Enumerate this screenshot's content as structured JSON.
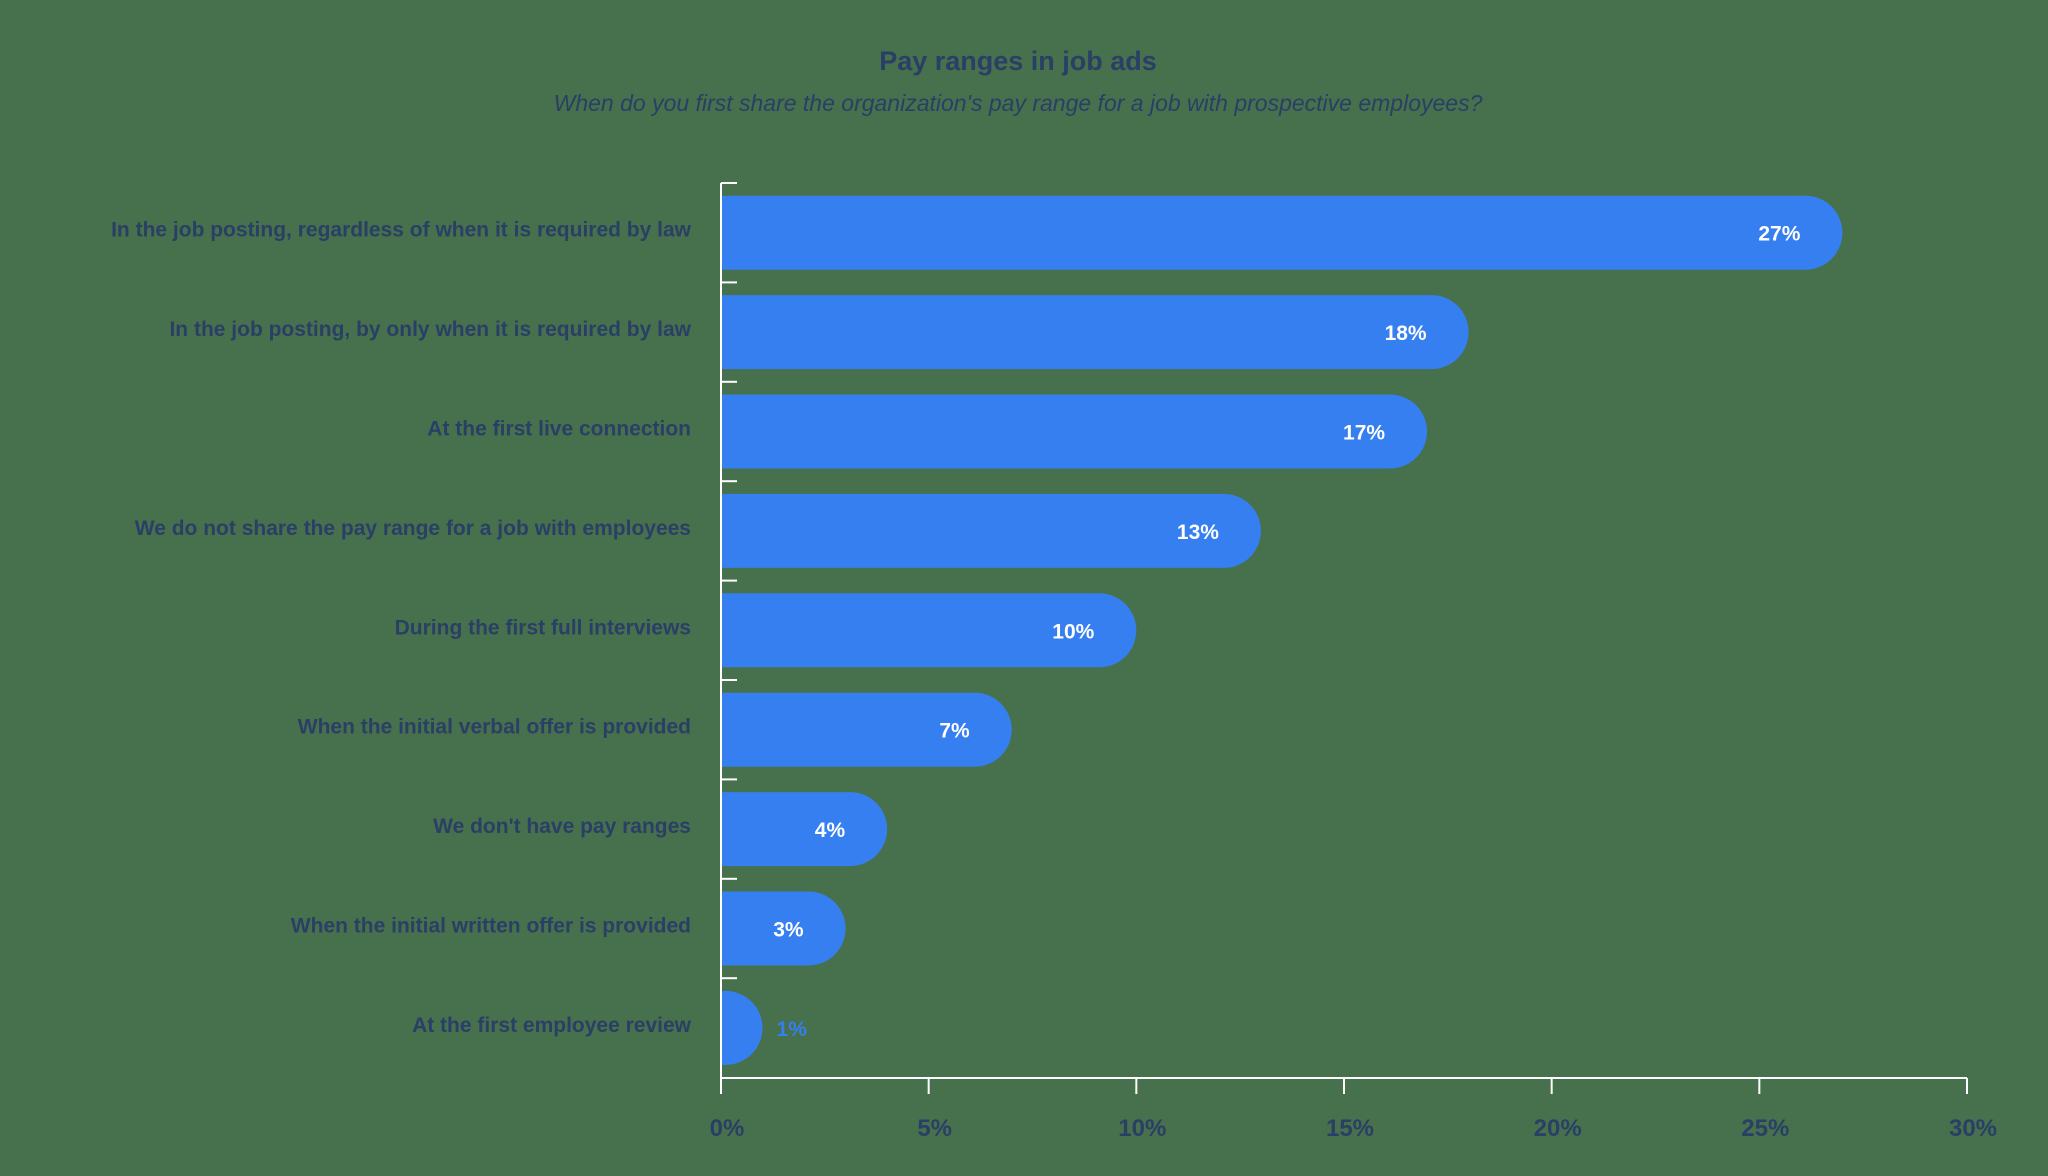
{
  "colors": {
    "background": "#47704d",
    "bar": "#367ff0",
    "text": "#2a3f66",
    "axis": "#ffffff"
  },
  "chart_data": {
    "type": "bar",
    "orientation": "horizontal",
    "title": "Pay ranges in job ads",
    "subtitle": "When do you first share the organization's pay range for a job with prospective employees?",
    "categories": [
      "In the job posting, regardless of when it is required by law",
      "In the job posting, by only when it is required by law",
      "At the first live connection",
      "We do not share the pay range for a job with employees",
      "During the first full interviews",
      "When the initial verbal offer is provided",
      "We don't have pay ranges",
      "When the initial written offer is provided",
      "At the first employee review"
    ],
    "values": [
      27,
      18,
      17,
      13,
      10,
      7,
      4,
      3,
      1
    ],
    "value_labels": [
      "27%",
      "18%",
      "17%",
      "13%",
      "10%",
      "7%",
      "4%",
      "3%",
      "1%"
    ],
    "xlim": [
      0,
      30
    ],
    "xticks": [
      0,
      5,
      10,
      15,
      20,
      25,
      30
    ],
    "xtick_labels": [
      "0%",
      "5%",
      "10%",
      "15%",
      "20%",
      "25%",
      "30%"
    ],
    "xlabel": "",
    "ylabel": "",
    "grid": false,
    "legend": "none"
  }
}
